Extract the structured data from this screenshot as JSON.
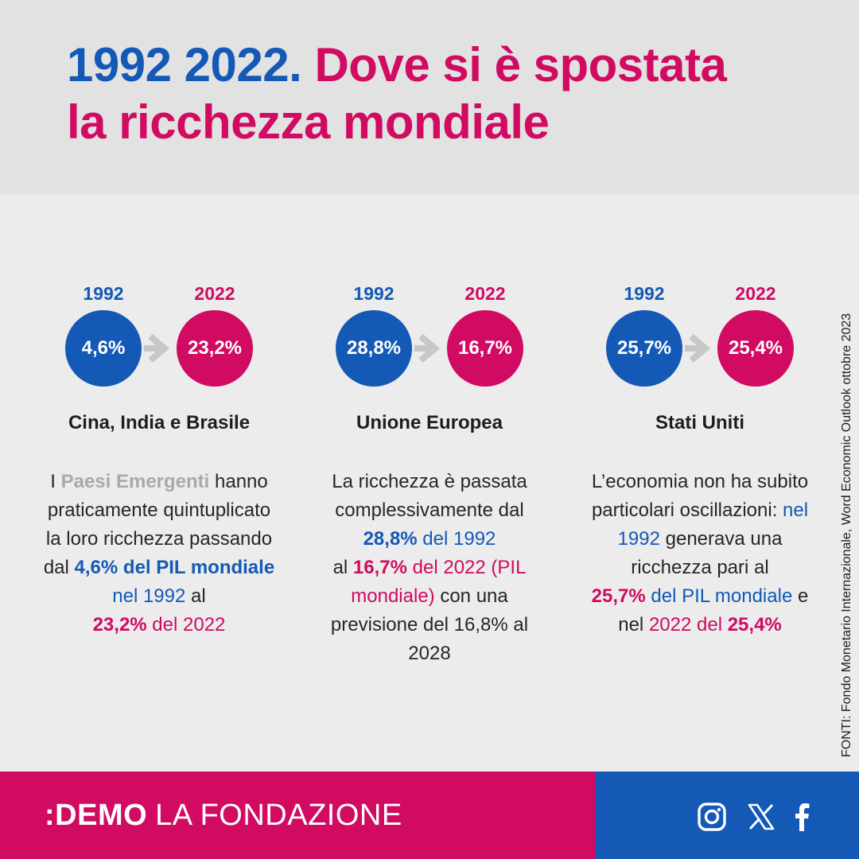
{
  "title": {
    "year_part": "1992 2022.",
    "rest_line1": "Dove si è spostata",
    "rest_line2": "la ricchezza mondiale"
  },
  "columns": [
    {
      "year_from": "1992",
      "year_to": "2022",
      "value_from": "4,6%",
      "value_to": "23,2%",
      "label": "Cina, India e Brasile",
      "text": {
        "p1": "I ",
        "p2": "Paesi Emergenti",
        "p3": " hanno praticamente quintuplicato la loro ricchezza passando dal ",
        "p4": "4,6% del PIL mondiale",
        "p5": " nel 1992",
        "p6": " al ",
        "p7": "23,2%",
        "p8": " del 2022"
      }
    },
    {
      "year_from": "1992",
      "year_to": "2022",
      "value_from": "28,8%",
      "value_to": "16,7%",
      "label": "Unione Europea",
      "text": {
        "p1": "La ricchezza è passata complessivamente dal ",
        "p2": "28,8%",
        "p3": " del 1992",
        "p4": " al ",
        "p5": "16,7%",
        "p6": " del 2022 (PIL mondiale)",
        "p7": " con una previsione del 16,8% al 2028"
      }
    },
    {
      "year_from": "1992",
      "year_to": "2022",
      "value_from": "25,7%",
      "value_to": "25,4%",
      "label": "Stati Uniti",
      "text": {
        "p1": "L’economia non ha subito particolari oscillazioni: ",
        "p2": "nel 1992",
        "p3": " generava una ricchezza pari al ",
        "p4": "25,7%",
        "p5": " del PIL mondiale",
        "p6": " e nel ",
        "p7": "2022 del ",
        "p8": "25,4%"
      }
    }
  ],
  "source": "FONTI: Fondo Monetario Internazionale, Word Economic Outlook ottobre 2023",
  "footer": {
    "logo_brand": ":DEMO",
    "logo_sub": "LA FONDAZIONE",
    "social": [
      "instagram-icon",
      "x-icon",
      "facebook-icon"
    ]
  },
  "colors": {
    "blue": "#1459b6",
    "pink": "#d10a62",
    "header_bg": "#e2e2e2",
    "body_bg": "#ececec",
    "arrow": "#c7c7c7"
  }
}
